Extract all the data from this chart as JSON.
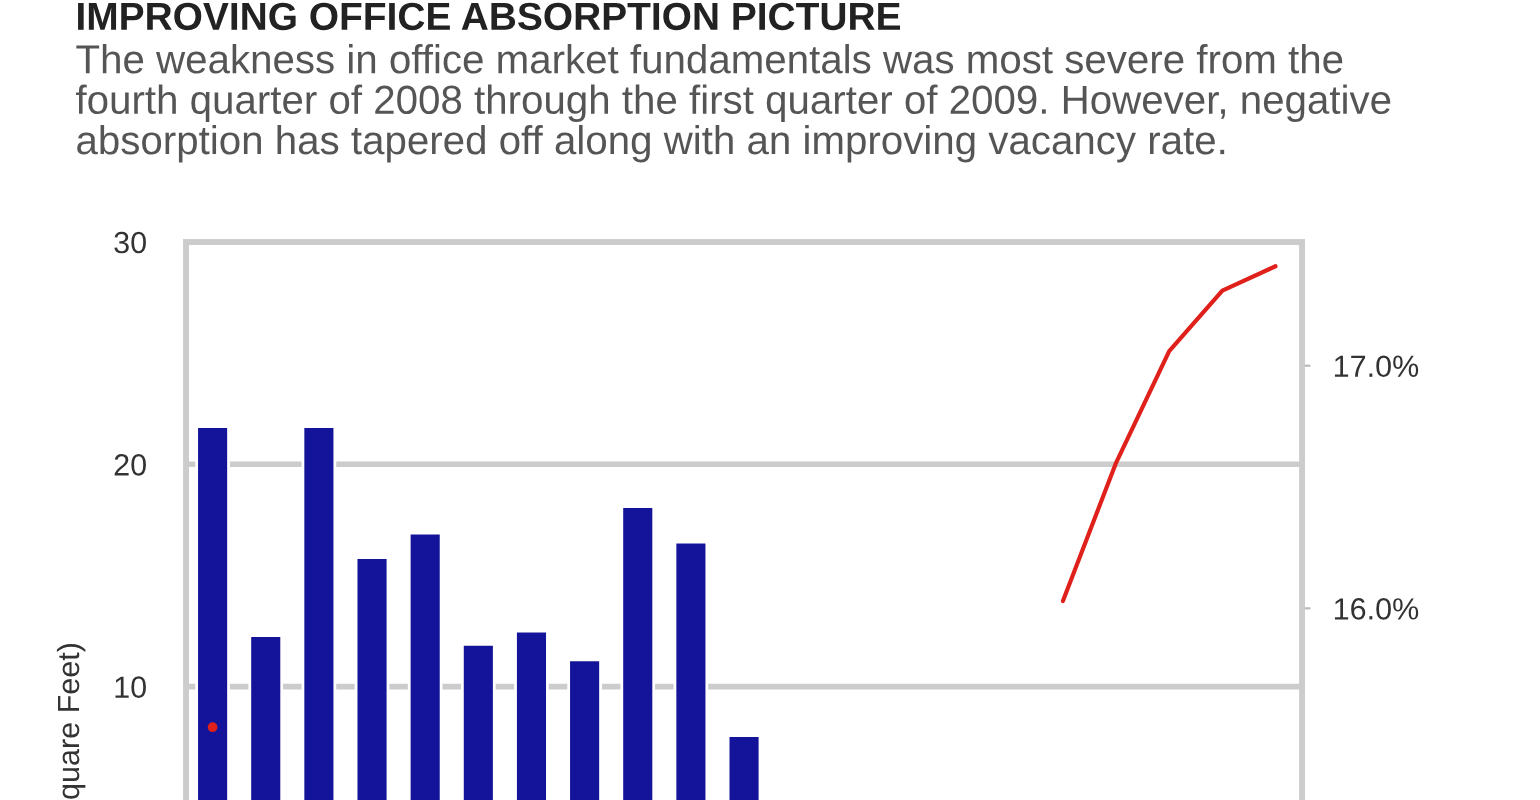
{
  "chart_data": {
    "type": "bar",
    "title": "IMPROVING OFFICE ABSORPTION PICTURE",
    "subtitle": "The weakness in office market fundamentals was most severe from the\nfourth quarter of 2008 through the first quarter of 2009. However, negative\nabsorption has tapered off along with an improving vacancy rate.",
    "ylabel": "quare Feet)",
    "categories": [
      null,
      null,
      null,
      null,
      null,
      null,
      null,
      null,
      null,
      null,
      null,
      null,
      null,
      null,
      null,
      null,
      null,
      null,
      null,
      null,
      null
    ],
    "series": [
      {
        "color": "#14149a",
        "values": [
          21.7,
          12.3,
          21.7,
          15.8,
          16.9,
          11.9,
          12.5,
          11.2,
          18.1,
          16.5,
          7.8,
          null,
          null,
          null,
          null,
          null,
          null,
          null,
          null,
          null,
          null
        ]
      },
      {
        "type": "line",
        "axis": "y2",
        "color": "#e0201a",
        "values": [
          15.51,
          null,
          null,
          null,
          null,
          null,
          null,
          null,
          null,
          null,
          null,
          null,
          null,
          null,
          null,
          null,
          16.03,
          16.6,
          17.06,
          17.31,
          17.41
        ]
      }
    ],
    "ylim": [
      4.9,
      30
    ],
    "yticks": [
      10,
      20,
      30
    ],
    "y2lim": [
      15.21,
      17.51
    ],
    "y2ticks": [
      {
        "value": 16.0,
        "label": "16.0%"
      },
      {
        "value": 17.0,
        "label": "17.0%"
      }
    ],
    "grid": "y",
    "tick_labels": "y",
    "line_style": "solid",
    "marker": "none"
  }
}
